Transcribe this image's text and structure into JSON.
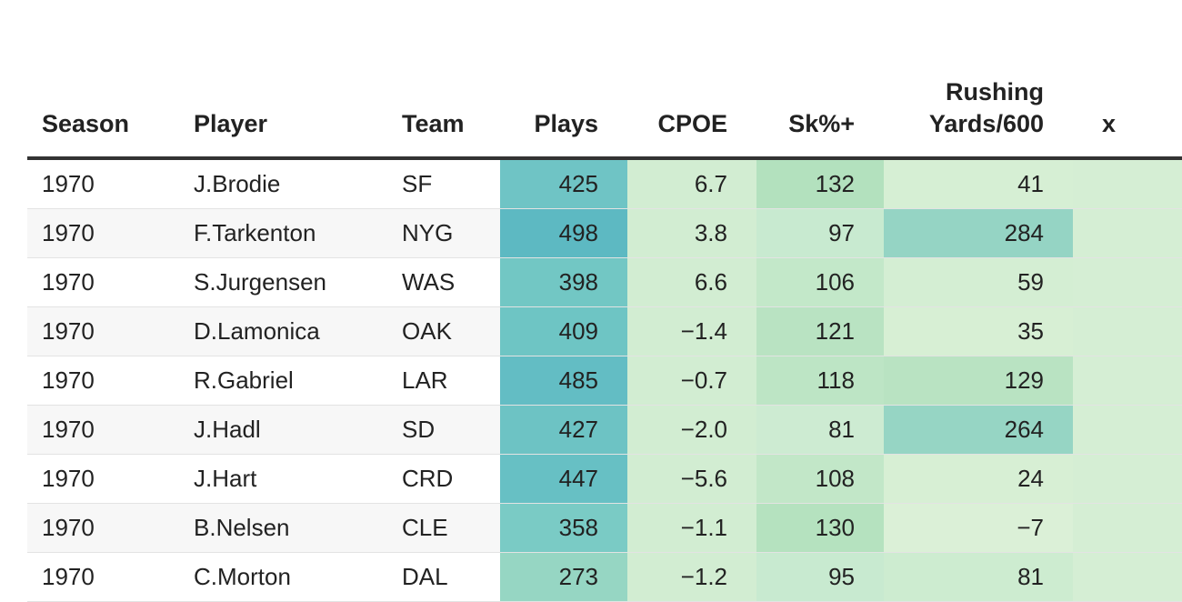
{
  "table": {
    "headers": {
      "season": "Season",
      "player": "Player",
      "team": "Team",
      "plays": "Plays",
      "cpoe": "CPOE",
      "sk": "Sk%+",
      "rush_line1": "Rushing",
      "rush_line2": "Yards/600",
      "x_partial": "x"
    },
    "rows": [
      {
        "season": "1970",
        "player": "J.Brodie",
        "team": "SF",
        "plays": "425",
        "cpoe": "6.7",
        "sk": "132",
        "rush": "41"
      },
      {
        "season": "1970",
        "player": "F.Tarkenton",
        "team": "NYG",
        "plays": "498",
        "cpoe": "3.8",
        "sk": "97",
        "rush": "284"
      },
      {
        "season": "1970",
        "player": "S.Jurgensen",
        "team": "WAS",
        "plays": "398",
        "cpoe": "6.6",
        "sk": "106",
        "rush": "59"
      },
      {
        "season": "1970",
        "player": "D.Lamonica",
        "team": "OAK",
        "plays": "409",
        "cpoe": "−1.4",
        "sk": "121",
        "rush": "35"
      },
      {
        "season": "1970",
        "player": "R.Gabriel",
        "team": "LAR",
        "plays": "485",
        "cpoe": "−0.7",
        "sk": "118",
        "rush": "129"
      },
      {
        "season": "1970",
        "player": "J.Hadl",
        "team": "SD",
        "plays": "427",
        "cpoe": "−2.0",
        "sk": "81",
        "rush": "264"
      },
      {
        "season": "1970",
        "player": "J.Hart",
        "team": "CRD",
        "plays": "447",
        "cpoe": "−5.6",
        "sk": "108",
        "rush": "24"
      },
      {
        "season": "1970",
        "player": "B.Nelsen",
        "team": "CLE",
        "plays": "358",
        "cpoe": "−1.1",
        "sk": "130",
        "rush": "−7"
      },
      {
        "season": "1970",
        "player": "C.Morton",
        "team": "DAL",
        "plays": "273",
        "cpoe": "−1.2",
        "sk": "95",
        "rush": "81"
      }
    ],
    "cell_colors": {
      "plays": [
        "#6fc4c5",
        "#5db9c2",
        "#72c7c4",
        "#6ec5c4",
        "#63bdc4",
        "#6dc3c4",
        "#67c0c4",
        "#7acbc5",
        "#96d6c3"
      ],
      "cpoe": [
        "#d2edd2",
        "#d2edd2",
        "#d2edd2",
        "#d2edd2",
        "#d2edd2",
        "#d2edd2",
        "#d2edd2",
        "#d2edd2",
        "#d2edd2"
      ],
      "sk": [
        "#b3e1be",
        "#c8ead0",
        "#c3e8c9",
        "#b9e3c2",
        "#bde5c5",
        "#cdebd2",
        "#c2e7c8",
        "#b5e2bf",
        "#c8ead0"
      ],
      "rush": [
        "#d6efd4",
        "#95d4c4",
        "#d4eed3",
        "#d7efd4",
        "#b9e3c2",
        "#96d5c4",
        "#d7efd4",
        "#dbf0d7",
        "#cdecd0"
      ],
      "x": [
        "#d5eed4",
        "#d5eed4",
        "#d5eed4",
        "#d5eed4",
        "#d5eed4",
        "#d5eed4",
        "#d5eed4",
        "#d5eed4",
        "#d5eed4"
      ]
    }
  }
}
